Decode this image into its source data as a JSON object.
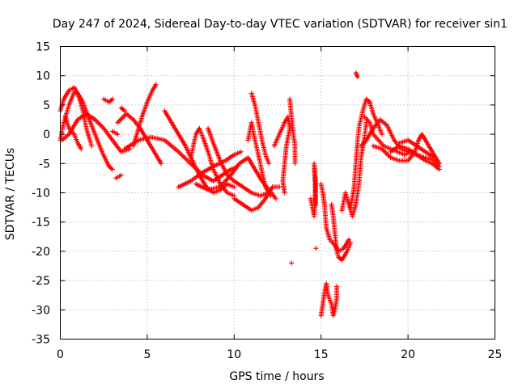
{
  "chart_data": {
    "type": "scatter",
    "title": "Day 247 of 2024, Sidereal Day-to-day VTEC variation (SDTVAR) for receiver sin1",
    "xlabel": "GPS time / hours",
    "ylabel": "SDTVAR / TECUs",
    "xlim": [
      0,
      25
    ],
    "ylim": [
      -35,
      15
    ],
    "xticks": [
      "0",
      "5",
      "10",
      "15",
      "20",
      "25"
    ],
    "yticks": [
      "15",
      "10",
      "5",
      "0",
      "-5",
      "-10",
      "-15",
      "-20",
      "-25",
      "-30",
      "-35"
    ],
    "grid": true,
    "marker": "plus",
    "color": "#ff0000",
    "tracks": [
      {
        "name": "arc-1",
        "points": [
          [
            0.0,
            -1.0
          ],
          [
            0.2,
            2.0
          ],
          [
            0.5,
            5.0
          ],
          [
            0.8,
            7.2
          ],
          [
            1.0,
            7.0
          ],
          [
            1.3,
            5.5
          ],
          [
            1.6,
            3.0
          ],
          [
            2.0,
            0.0
          ],
          [
            2.4,
            -3.0
          ],
          [
            2.8,
            -5.5
          ],
          [
            3.0,
            -6.0
          ]
        ]
      },
      {
        "name": "arc-2",
        "points": [
          [
            0.0,
            4.0
          ],
          [
            0.2,
            6.0
          ],
          [
            0.5,
            7.5
          ],
          [
            0.8,
            8.0
          ],
          [
            1.0,
            7.0
          ],
          [
            1.3,
            4.0
          ],
          [
            1.5,
            1.0
          ],
          [
            1.7,
            -1.0
          ],
          [
            1.8,
            -2.0
          ]
        ]
      },
      {
        "name": "arc-3",
        "points": [
          [
            0.3,
            3.0
          ],
          [
            0.5,
            1.0
          ],
          [
            0.8,
            0.0
          ],
          [
            1.0,
            -1.5
          ],
          [
            1.2,
            -2.5
          ]
        ]
      },
      {
        "name": "arc-4",
        "points": [
          [
            0.1,
            -1.0
          ],
          [
            0.5,
            0.0
          ],
          [
            1.0,
            2.5
          ],
          [
            1.5,
            3.5
          ],
          [
            2.0,
            2.5
          ],
          [
            2.5,
            1.0
          ],
          [
            3.0,
            -1.0
          ],
          [
            3.5,
            -3.0
          ],
          [
            4.0,
            -2.5
          ]
        ]
      },
      {
        "name": "arc-5",
        "points": [
          [
            2.5,
            6.0
          ],
          [
            2.8,
            5.5
          ],
          [
            3.0,
            6.0
          ]
        ]
      },
      {
        "name": "arc-6",
        "points": [
          [
            3.2,
            -7.5
          ],
          [
            3.5,
            -7.0
          ]
        ]
      },
      {
        "name": "arc-7",
        "points": [
          [
            3.5,
            4.5
          ],
          [
            3.7,
            4.0
          ]
        ]
      },
      {
        "name": "arc-8",
        "points": [
          [
            3.0,
            0.5
          ],
          [
            3.3,
            0.0
          ]
        ]
      },
      {
        "name": "arc-9",
        "points": [
          [
            3.3,
            2.0
          ],
          [
            3.8,
            3.5
          ],
          [
            4.2,
            2.5
          ],
          [
            4.6,
            1.0
          ],
          [
            5.0,
            -1.0
          ],
          [
            5.4,
            -3.0
          ],
          [
            5.8,
            -5.0
          ]
        ]
      },
      {
        "name": "arc-10",
        "points": [
          [
            4.2,
            -2.0
          ],
          [
            4.4,
            0.0
          ],
          [
            4.7,
            3.0
          ],
          [
            5.0,
            5.5
          ],
          [
            5.3,
            7.5
          ],
          [
            5.5,
            8.5
          ]
        ]
      },
      {
        "name": "arc-11",
        "points": [
          [
            3.7,
            -2.5
          ],
          [
            4.5,
            -1.0
          ],
          [
            5.2,
            -0.5
          ],
          [
            6.0,
            -1.0
          ],
          [
            6.8,
            -3.0
          ],
          [
            7.5,
            -5.0
          ],
          [
            8.2,
            -7.0
          ],
          [
            8.8,
            -8.0
          ],
          [
            9.3,
            -7.0
          ],
          [
            9.8,
            -6.0
          ],
          [
            10.2,
            -5.5
          ]
        ]
      },
      {
        "name": "arc-12",
        "points": [
          [
            6.0,
            4.0
          ],
          [
            6.4,
            2.0
          ],
          [
            6.8,
            0.0
          ],
          [
            7.2,
            -2.0
          ],
          [
            7.6,
            -4.5
          ],
          [
            8.0,
            -7.0
          ],
          [
            8.4,
            -9.0
          ],
          [
            8.8,
            -10.0
          ],
          [
            9.2,
            -9.5
          ],
          [
            9.6,
            -8.5
          ],
          [
            10.0,
            -9.0
          ]
        ]
      },
      {
        "name": "arc-13",
        "points": [
          [
            7.5,
            -4.0
          ],
          [
            7.8,
            0.0
          ],
          [
            8.0,
            1.0
          ],
          [
            8.2,
            -0.5
          ],
          [
            8.5,
            -3.0
          ],
          [
            8.8,
            -6.0
          ],
          [
            9.2,
            -8.5
          ],
          [
            9.6,
            -10.0
          ],
          [
            10.0,
            -10.5
          ]
        ]
      },
      {
        "name": "arc-14",
        "points": [
          [
            6.8,
            -9.0
          ],
          [
            7.5,
            -8.0
          ],
          [
            8.2,
            -6.5
          ],
          [
            8.8,
            -5.5
          ],
          [
            9.5,
            -4.5
          ],
          [
            10.0,
            -3.5
          ],
          [
            10.4,
            -3.0
          ]
        ]
      },
      {
        "name": "arc-15",
        "points": [
          [
            7.8,
            -8.5
          ],
          [
            8.5,
            -9.5
          ],
          [
            9.2,
            -9.0
          ],
          [
            9.8,
            -7.0
          ],
          [
            10.3,
            -5.0
          ],
          [
            10.8,
            -4.0
          ],
          [
            11.2,
            -6.0
          ],
          [
            11.6,
            -8.0
          ],
          [
            12.0,
            -9.5
          ],
          [
            12.4,
            -11.0
          ]
        ]
      },
      {
        "name": "arc-16",
        "points": [
          [
            8.5,
            1.0
          ],
          [
            8.8,
            -1.5
          ],
          [
            9.2,
            -4.5
          ],
          [
            9.6,
            -7.0
          ],
          [
            10.0,
            -8.0
          ],
          [
            10.5,
            -9.0
          ],
          [
            11.0,
            -10.0
          ],
          [
            11.5,
            -10.5
          ],
          [
            12.0,
            -10.0
          ]
        ]
      },
      {
        "name": "arc-17",
        "points": [
          [
            10.0,
            -11.0
          ],
          [
            10.5,
            -12.0
          ],
          [
            11.0,
            -13.0
          ],
          [
            11.4,
            -12.5
          ],
          [
            11.8,
            -11.0
          ],
          [
            12.2,
            -9.0
          ],
          [
            12.6,
            -9.0
          ]
        ]
      },
      {
        "name": "arc-18",
        "points": [
          [
            10.8,
            -1.0
          ],
          [
            11.0,
            2.0
          ],
          [
            11.2,
            -1.0
          ],
          [
            11.5,
            -5.0
          ],
          [
            11.8,
            -9.0
          ],
          [
            12.1,
            -10.5
          ]
        ]
      },
      {
        "name": "arc-19",
        "points": [
          [
            11.0,
            7.0
          ],
          [
            11.2,
            5.0
          ],
          [
            11.4,
            2.0
          ],
          [
            11.6,
            -1.0
          ],
          [
            11.8,
            -3.5
          ],
          [
            12.0,
            -5.0
          ]
        ]
      },
      {
        "name": "arc-20",
        "points": [
          [
            12.3,
            -2.0
          ],
          [
            12.6,
            0.0
          ],
          [
            12.9,
            2.0
          ],
          [
            13.1,
            3.0
          ],
          [
            13.2,
            1.0
          ],
          [
            13.0,
            -2.0
          ],
          [
            12.9,
            -5.0
          ],
          [
            12.8,
            -8.0
          ],
          [
            12.9,
            -10.0
          ]
        ]
      },
      {
        "name": "arc-21",
        "points": [
          [
            13.2,
            6.0
          ],
          [
            13.3,
            3.0
          ],
          [
            13.4,
            0.0
          ],
          [
            13.5,
            -2.0
          ],
          [
            13.5,
            -5.0
          ]
        ]
      },
      {
        "name": "arc-22",
        "points": [
          [
            13.3,
            -22.0
          ]
        ]
      },
      {
        "name": "arc-23",
        "points": [
          [
            14.4,
            -11.0
          ],
          [
            14.5,
            -12.5
          ],
          [
            14.6,
            -14.0
          ],
          [
            14.7,
            -8.5
          ],
          [
            14.6,
            -5.0
          ],
          [
            14.7,
            -12.0
          ]
        ]
      },
      {
        "name": "arc-24",
        "points": [
          [
            14.7,
            -19.5
          ]
        ]
      },
      {
        "name": "arc-25",
        "points": [
          [
            15.0,
            -8.5
          ],
          [
            15.1,
            -10.0
          ],
          [
            15.2,
            -12.0
          ],
          [
            15.3,
            -16.0
          ],
          [
            15.5,
            -18.0
          ],
          [
            15.8,
            -19.0
          ],
          [
            16.0,
            -20.0
          ],
          [
            16.3,
            -19.5
          ],
          [
            16.6,
            -18.0
          ]
        ]
      },
      {
        "name": "arc-26",
        "points": [
          [
            15.0,
            -31.0
          ],
          [
            15.1,
            -29.0
          ],
          [
            15.2,
            -27.0
          ],
          [
            15.3,
            -25.5
          ],
          [
            15.4,
            -27.5
          ],
          [
            15.6,
            -29.0
          ],
          [
            15.7,
            -31.0
          ],
          [
            15.8,
            -30.0
          ],
          [
            15.9,
            -28.0
          ],
          [
            15.9,
            -26.0
          ]
        ]
      },
      {
        "name": "arc-27",
        "points": [
          [
            15.6,
            -12.0
          ],
          [
            15.7,
            -14.0
          ],
          [
            15.8,
            -17.0
          ],
          [
            15.9,
            -20.0
          ],
          [
            16.0,
            -21.0
          ],
          [
            16.2,
            -21.5
          ],
          [
            16.5,
            -20.0
          ],
          [
            16.7,
            -18.5
          ]
        ]
      },
      {
        "name": "arc-28",
        "points": [
          [
            16.2,
            -13.0
          ],
          [
            16.4,
            -10.0
          ],
          [
            16.6,
            -12.0
          ],
          [
            16.8,
            -14.0
          ],
          [
            17.0,
            -12.0
          ],
          [
            17.2,
            -8.0
          ],
          [
            17.3,
            -4.0
          ],
          [
            17.5,
            -0.5
          ],
          [
            17.6,
            2.0
          ]
        ]
      },
      {
        "name": "arc-29",
        "points": [
          [
            16.7,
            -12.5
          ],
          [
            16.9,
            -9.0
          ],
          [
            17.0,
            -5.0
          ],
          [
            17.1,
            -1.0
          ],
          [
            17.2,
            1.5
          ],
          [
            17.4,
            4.0
          ],
          [
            17.6,
            6.0
          ],
          [
            17.8,
            5.5
          ],
          [
            18.0,
            3.5
          ],
          [
            18.3,
            1.5
          ],
          [
            18.5,
            0.0
          ]
        ]
      },
      {
        "name": "arc-30",
        "points": [
          [
            17.0,
            10.5
          ],
          [
            17.1,
            9.8
          ]
        ]
      },
      {
        "name": "arc-31",
        "points": [
          [
            17.5,
            3.0
          ],
          [
            17.8,
            2.0
          ],
          [
            18.0,
            0.0
          ],
          [
            18.3,
            -1.0
          ],
          [
            18.6,
            -2.0
          ],
          [
            19.0,
            -2.5
          ],
          [
            19.4,
            -3.0
          ],
          [
            19.8,
            -3.5
          ],
          [
            20.2,
            -3.0
          ]
        ]
      },
      {
        "name": "arc-32",
        "points": [
          [
            17.3,
            -2.0
          ],
          [
            17.6,
            -1.0
          ],
          [
            18.0,
            1.0
          ],
          [
            18.4,
            2.5
          ],
          [
            18.8,
            1.5
          ],
          [
            19.2,
            -1.0
          ],
          [
            19.6,
            -2.5
          ],
          [
            20.0,
            -3.0
          ],
          [
            20.5,
            -3.5
          ],
          [
            21.0,
            -4.5
          ],
          [
            21.4,
            -5.0
          ],
          [
            21.8,
            -6.0
          ]
        ]
      },
      {
        "name": "arc-33",
        "points": [
          [
            18.0,
            -2.0
          ],
          [
            18.5,
            -2.5
          ],
          [
            19.0,
            -4.0
          ],
          [
            19.5,
            -4.5
          ],
          [
            20.0,
            -4.5
          ],
          [
            20.4,
            -3.0
          ],
          [
            20.6,
            -1.0
          ],
          [
            20.8,
            0.0
          ],
          [
            21.0,
            -1.0
          ],
          [
            21.2,
            -2.0
          ],
          [
            21.5,
            -3.5
          ],
          [
            21.8,
            -5.0
          ]
        ]
      },
      {
        "name": "arc-34",
        "points": [
          [
            19.0,
            -3.0
          ],
          [
            19.5,
            -2.0
          ],
          [
            20.0,
            -2.5
          ],
          [
            20.5,
            -3.5
          ],
          [
            21.0,
            -4.0
          ],
          [
            21.5,
            -4.5
          ],
          [
            21.8,
            -5.5
          ]
        ]
      },
      {
        "name": "arc-35",
        "points": [
          [
            19.5,
            -1.5
          ],
          [
            20.0,
            -1.0
          ],
          [
            20.5,
            -2.0
          ],
          [
            21.0,
            -3.0
          ],
          [
            21.5,
            -4.0
          ]
        ]
      }
    ]
  }
}
